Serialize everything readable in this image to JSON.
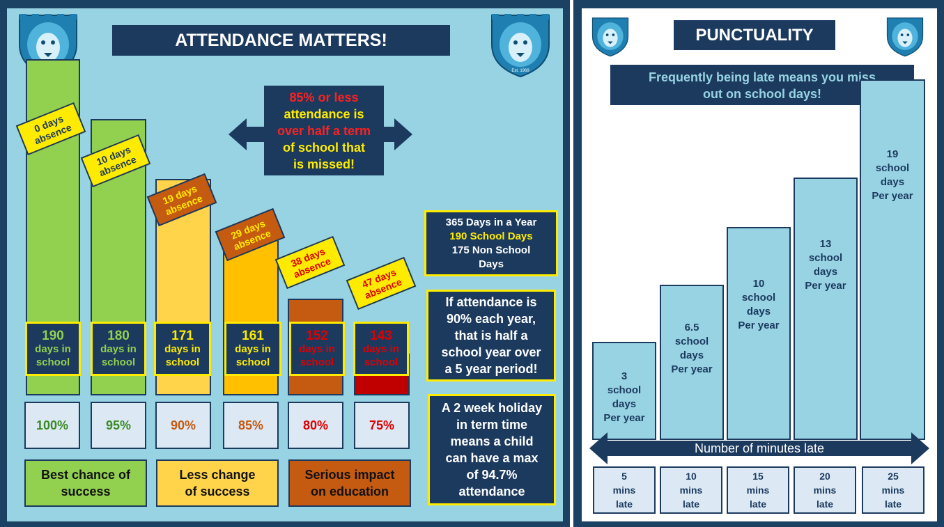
{
  "attendance": {
    "title": "ATTENDANCE MATTERS!",
    "callout": {
      "line1": "85% or less",
      "line2": "attendance is",
      "line3": "over half a term",
      "line4": "of school that",
      "line5": "is missed!"
    },
    "bars": [
      {
        "absence_line1": "0 days",
        "absence_line2": "absence",
        "days": "190",
        "days_label": "days in school",
        "percent": "100%",
        "percent_value": 100
      },
      {
        "absence_line1": "10 days",
        "absence_line2": "absence",
        "days": "180",
        "days_label": "days in school",
        "percent": "95%",
        "percent_value": 95
      },
      {
        "absence_line1": "19 days",
        "absence_line2": "absence",
        "days": "171",
        "days_label": "days in school",
        "percent": "90%",
        "percent_value": 90
      },
      {
        "absence_line1": "29 days",
        "absence_line2": "absence",
        "days": "161",
        "days_label": "days in school",
        "percent": "85%",
        "percent_value": 85
      },
      {
        "absence_line1": "38 days",
        "absence_line2": "absence",
        "days": "152",
        "days_label": "days in school",
        "percent": "80%",
        "percent_value": 80
      },
      {
        "absence_line1": "47 days",
        "absence_line2": "absence",
        "days": "143",
        "days_label": "days in school",
        "percent": "75%",
        "percent_value": 75
      }
    ],
    "legend": [
      {
        "line1": "Best chance of",
        "line2": "success"
      },
      {
        "line1": "Less change",
        "line2": "of success"
      },
      {
        "line1": "Serious impact",
        "line2": "on education"
      }
    ],
    "info1": {
      "line1": "365 Days in a Year",
      "line2": "190 School Days",
      "line3": "175 Non School",
      "line4": "Days"
    },
    "info2": {
      "line1": "If attendance is",
      "line2": "90% each year,",
      "line3": "that is half a",
      "line4": "school year over",
      "line5": "a 5 year period!"
    },
    "info3": {
      "line1": "A 2 week holiday",
      "line2": "in term time",
      "line3": "means a child",
      "line4": "can have a max",
      "line5": "of 94.7%",
      "line6": "attendance"
    },
    "crest_caption": "Est. 1969"
  },
  "punctuality": {
    "title": "PUNCTUALITY",
    "subtitle_line1": "Frequently being late means you miss",
    "subtitle_line2": "out on school days!",
    "axis_label": "Number of minutes late",
    "bars": [
      {
        "value": "3",
        "l2": "school",
        "l3": "days",
        "l4": "Per year",
        "days": 3,
        "mins": "5",
        "mins_l2": "mins",
        "mins_l3": "late"
      },
      {
        "value": "6.5",
        "l2": "school",
        "l3": "days",
        "l4": "Per year",
        "days": 6.5,
        "mins": "10",
        "mins_l2": "mins",
        "mins_l3": "late"
      },
      {
        "value": "10",
        "l2": "school",
        "l3": "days",
        "l4": "Per year",
        "days": 10,
        "mins": "15",
        "mins_l2": "mins",
        "mins_l3": "late"
      },
      {
        "value": "13",
        "l2": "school",
        "l3": "days",
        "l4": "Per year",
        "days": 13,
        "mins": "20",
        "mins_l2": "mins",
        "mins_l3": "late"
      },
      {
        "value": "19",
        "l2": "school",
        "l3": "days",
        "l4": "Per year",
        "days": 19,
        "mins": "25",
        "mins_l2": "mins",
        "mins_l3": "late"
      }
    ]
  },
  "colors": {
    "navy": "#1b3a5e",
    "sky": "#98d3e4",
    "yellow": "#ffeb00",
    "green": "#92d050",
    "amber": "#ffc000",
    "orange": "#c55a11",
    "red": "#c00000"
  }
}
